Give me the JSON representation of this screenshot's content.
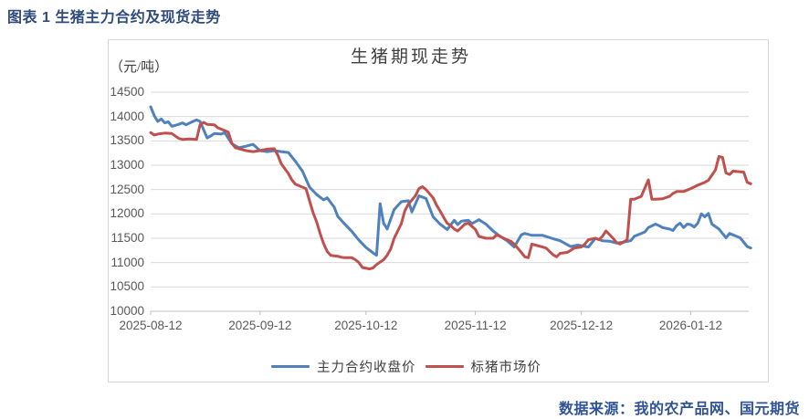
{
  "header": {
    "title": "图表 1 生猪主力合约及现货走势"
  },
  "footer": {
    "source": "数据来源：我的农产品网、国元期货"
  },
  "palette": {
    "header_text": "#2E4B7C",
    "source_text": "#2F5496",
    "grid": "#D9D9D9",
    "axis_line": "#BFBFBF",
    "axis_text": "#595959",
    "title_text": "#404040",
    "series_blue": "#4F81BD",
    "series_red": "#C0504D"
  },
  "chart_data": {
    "type": "line",
    "title": "生猪期现走势",
    "unit_label": "（元/吨）",
    "xlabel": "",
    "ylabel": "元/吨",
    "ylim": [
      10000,
      14500
    ],
    "y_ticks": [
      10000,
      10500,
      11000,
      11500,
      12000,
      12500,
      13000,
      13500,
      14000,
      14500
    ],
    "x_ticks": [
      "2025-08-12",
      "2025-09-12",
      "2025-10-12",
      "2025-11-12",
      "2025-12-12",
      "2026-01-12"
    ],
    "x_range": [
      "2025-08-12",
      "2026-01-29"
    ],
    "grid": true,
    "legend_position": "bottom",
    "series": [
      {
        "name": "主力合约收盘价",
        "color": "#4F81BD",
        "points": [
          [
            "2025-08-12",
            14200
          ],
          [
            "2025-08-13",
            14020
          ],
          [
            "2025-08-14",
            13900
          ],
          [
            "2025-08-15",
            13950
          ],
          [
            "2025-08-16",
            13870
          ],
          [
            "2025-08-17",
            13890
          ],
          [
            "2025-08-18",
            13800
          ],
          [
            "2025-08-20",
            13840
          ],
          [
            "2025-08-21",
            13870
          ],
          [
            "2025-08-22",
            13830
          ],
          [
            "2025-08-24",
            13900
          ],
          [
            "2025-08-25",
            13930
          ],
          [
            "2025-08-26",
            13900
          ],
          [
            "2025-08-28",
            13560
          ],
          [
            "2025-08-29",
            13600
          ],
          [
            "2025-08-30",
            13650
          ],
          [
            "2025-09-01",
            13640
          ],
          [
            "2025-09-02",
            13670
          ],
          [
            "2025-09-04",
            13440
          ],
          [
            "2025-09-06",
            13360
          ],
          [
            "2025-09-08",
            13390
          ],
          [
            "2025-09-10",
            13430
          ],
          [
            "2025-09-12",
            13300
          ],
          [
            "2025-09-14",
            13280
          ],
          [
            "2025-09-16",
            13300
          ],
          [
            "2025-09-18",
            13280
          ],
          [
            "2025-09-20",
            13260
          ],
          [
            "2025-09-22",
            13080
          ],
          [
            "2025-09-24",
            12880
          ],
          [
            "2025-09-26",
            12550
          ],
          [
            "2025-09-28",
            12400
          ],
          [
            "2025-09-30",
            12290
          ],
          [
            "2025-10-01",
            12330
          ],
          [
            "2025-10-03",
            12140
          ],
          [
            "2025-10-04",
            11950
          ],
          [
            "2025-10-06",
            11790
          ],
          [
            "2025-10-08",
            11640
          ],
          [
            "2025-10-10",
            11460
          ],
          [
            "2025-10-12",
            11310
          ],
          [
            "2025-10-14",
            11200
          ],
          [
            "2025-10-15",
            11150
          ],
          [
            "2025-10-16",
            12210
          ],
          [
            "2025-10-17",
            11810
          ],
          [
            "2025-10-18",
            11690
          ],
          [
            "2025-10-20",
            12090
          ],
          [
            "2025-10-22",
            12250
          ],
          [
            "2025-10-24",
            12270
          ],
          [
            "2025-10-25",
            12040
          ],
          [
            "2025-10-27",
            12370
          ],
          [
            "2025-10-29",
            12320
          ],
          [
            "2025-10-31",
            11940
          ],
          [
            "2025-11-02",
            11790
          ],
          [
            "2025-11-04",
            11680
          ],
          [
            "2025-11-06",
            11870
          ],
          [
            "2025-11-07",
            11780
          ],
          [
            "2025-11-08",
            11850
          ],
          [
            "2025-11-10",
            11870
          ],
          [
            "2025-11-11",
            11800
          ],
          [
            "2025-11-13",
            11880
          ],
          [
            "2025-11-15",
            11790
          ],
          [
            "2025-11-17",
            11650
          ],
          [
            "2025-11-19",
            11540
          ],
          [
            "2025-11-21",
            11450
          ],
          [
            "2025-11-23",
            11320
          ],
          [
            "2025-11-25",
            11570
          ],
          [
            "2025-11-26",
            11600
          ],
          [
            "2025-11-28",
            11560
          ],
          [
            "2025-12-01",
            11560
          ],
          [
            "2025-12-04",
            11490
          ],
          [
            "2025-12-06",
            11450
          ],
          [
            "2025-12-09",
            11330
          ],
          [
            "2025-12-11",
            11360
          ],
          [
            "2025-12-14",
            11320
          ],
          [
            "2025-12-16",
            11500
          ],
          [
            "2025-12-18",
            11450
          ],
          [
            "2025-12-20",
            11440
          ],
          [
            "2025-12-22",
            11400
          ],
          [
            "2025-12-24",
            11420
          ],
          [
            "2025-12-26",
            11450
          ],
          [
            "2025-12-27",
            11540
          ],
          [
            "2025-12-29",
            11600
          ],
          [
            "2025-12-30",
            11630
          ],
          [
            "2025-12-31",
            11720
          ],
          [
            "2026-01-02",
            11790
          ],
          [
            "2026-01-03",
            11760
          ],
          [
            "2026-01-04",
            11720
          ],
          [
            "2026-01-06",
            11690
          ],
          [
            "2026-01-07",
            11660
          ],
          [
            "2026-01-08",
            11760
          ],
          [
            "2026-01-09",
            11810
          ],
          [
            "2026-01-10",
            11720
          ],
          [
            "2026-01-11",
            11790
          ],
          [
            "2026-01-12",
            11780
          ],
          [
            "2026-01-13",
            11730
          ],
          [
            "2026-01-14",
            11810
          ],
          [
            "2026-01-15",
            12000
          ],
          [
            "2026-01-16",
            11940
          ],
          [
            "2026-01-17",
            12010
          ],
          [
            "2026-01-18",
            11790
          ],
          [
            "2026-01-20",
            11690
          ],
          [
            "2026-01-21",
            11600
          ],
          [
            "2026-01-22",
            11510
          ],
          [
            "2026-01-23",
            11600
          ],
          [
            "2026-01-24",
            11570
          ],
          [
            "2026-01-25",
            11540
          ],
          [
            "2026-01-26",
            11510
          ],
          [
            "2026-01-28",
            11330
          ],
          [
            "2026-01-29",
            11300
          ]
        ]
      },
      {
        "name": "标猪市场价",
        "color": "#C0504D",
        "points": [
          [
            "2025-08-12",
            13670
          ],
          [
            "2025-08-13",
            13620
          ],
          [
            "2025-08-14",
            13640
          ],
          [
            "2025-08-16",
            13660
          ],
          [
            "2025-08-18",
            13650
          ],
          [
            "2025-08-20",
            13550
          ],
          [
            "2025-08-21",
            13530
          ],
          [
            "2025-08-23",
            13540
          ],
          [
            "2025-08-25",
            13530
          ],
          [
            "2025-08-26",
            13830
          ],
          [
            "2025-08-27",
            13880
          ],
          [
            "2025-08-28",
            13840
          ],
          [
            "2025-08-30",
            13830
          ],
          [
            "2025-08-31",
            13770
          ],
          [
            "2025-09-02",
            13710
          ],
          [
            "2025-09-03",
            13680
          ],
          [
            "2025-09-04",
            13450
          ],
          [
            "2025-09-05",
            13360
          ],
          [
            "2025-09-06",
            13340
          ],
          [
            "2025-09-08",
            13300
          ],
          [
            "2025-09-10",
            13280
          ],
          [
            "2025-09-12",
            13300
          ],
          [
            "2025-09-14",
            13330
          ],
          [
            "2025-09-16",
            13340
          ],
          [
            "2025-09-17",
            13210
          ],
          [
            "2025-09-18",
            13030
          ],
          [
            "2025-09-20",
            12830
          ],
          [
            "2025-09-21",
            12700
          ],
          [
            "2025-09-22",
            12610
          ],
          [
            "2025-09-24",
            12550
          ],
          [
            "2025-09-25",
            12520
          ],
          [
            "2025-09-26",
            12270
          ],
          [
            "2025-09-27",
            12030
          ],
          [
            "2025-09-28",
            11840
          ],
          [
            "2025-09-29",
            11600
          ],
          [
            "2025-09-30",
            11390
          ],
          [
            "2025-10-01",
            11230
          ],
          [
            "2025-10-02",
            11150
          ],
          [
            "2025-10-04",
            11130
          ],
          [
            "2025-10-05",
            11110
          ],
          [
            "2025-10-06",
            11100
          ],
          [
            "2025-10-08",
            11100
          ],
          [
            "2025-10-09",
            11060
          ],
          [
            "2025-10-10",
            11000
          ],
          [
            "2025-10-11",
            10900
          ],
          [
            "2025-10-13",
            10870
          ],
          [
            "2025-10-14",
            10890
          ],
          [
            "2025-10-15",
            10960
          ],
          [
            "2025-10-17",
            11060
          ],
          [
            "2025-10-18",
            11150
          ],
          [
            "2025-10-19",
            11280
          ],
          [
            "2025-10-20",
            11500
          ],
          [
            "2025-10-22",
            11800
          ],
          [
            "2025-10-23",
            12060
          ],
          [
            "2025-10-24",
            12200
          ],
          [
            "2025-10-26",
            12370
          ],
          [
            "2025-10-27",
            12520
          ],
          [
            "2025-10-28",
            12560
          ],
          [
            "2025-10-29",
            12500
          ],
          [
            "2025-10-31",
            12330
          ],
          [
            "2025-11-01",
            12180
          ],
          [
            "2025-11-02",
            12060
          ],
          [
            "2025-11-03",
            11930
          ],
          [
            "2025-11-04",
            11810
          ],
          [
            "2025-11-05",
            11760
          ],
          [
            "2025-11-06",
            11690
          ],
          [
            "2025-11-07",
            11650
          ],
          [
            "2025-11-08",
            11720
          ],
          [
            "2025-11-09",
            11790
          ],
          [
            "2025-11-10",
            11810
          ],
          [
            "2025-11-12",
            11680
          ],
          [
            "2025-11-13",
            11540
          ],
          [
            "2025-11-15",
            11500
          ],
          [
            "2025-11-17",
            11500
          ],
          [
            "2025-11-18",
            11570
          ],
          [
            "2025-11-19",
            11540
          ],
          [
            "2025-11-20",
            11500
          ],
          [
            "2025-11-22",
            11440
          ],
          [
            "2025-11-23",
            11380
          ],
          [
            "2025-11-25",
            11210
          ],
          [
            "2025-11-26",
            11120
          ],
          [
            "2025-11-27",
            11100
          ],
          [
            "2025-11-28",
            11380
          ],
          [
            "2025-11-29",
            11360
          ],
          [
            "2025-12-01",
            11320
          ],
          [
            "2025-12-02",
            11300
          ],
          [
            "2025-12-04",
            11160
          ],
          [
            "2025-12-05",
            11120
          ],
          [
            "2025-12-06",
            11190
          ],
          [
            "2025-12-08",
            11210
          ],
          [
            "2025-12-09",
            11250
          ],
          [
            "2025-12-10",
            11300
          ],
          [
            "2025-12-12",
            11320
          ],
          [
            "2025-12-13",
            11380
          ],
          [
            "2025-12-14",
            11470
          ],
          [
            "2025-12-16",
            11500
          ],
          [
            "2025-12-17",
            11470
          ],
          [
            "2025-12-18",
            11540
          ],
          [
            "2025-12-19",
            11650
          ],
          [
            "2025-12-21",
            11500
          ],
          [
            "2025-12-22",
            11410
          ],
          [
            "2025-12-23",
            11380
          ],
          [
            "2025-12-25",
            11470
          ],
          [
            "2025-12-26",
            12300
          ],
          [
            "2025-12-27",
            12300
          ],
          [
            "2025-12-29",
            12360
          ],
          [
            "2025-12-31",
            12700
          ],
          [
            "2026-01-01",
            12300
          ],
          [
            "2026-01-02",
            12300
          ],
          [
            "2026-01-04",
            12310
          ],
          [
            "2026-01-06",
            12360
          ],
          [
            "2026-01-07",
            12420
          ],
          [
            "2026-01-08",
            12460
          ],
          [
            "2026-01-10",
            12460
          ],
          [
            "2026-01-11",
            12490
          ],
          [
            "2026-01-12",
            12520
          ],
          [
            "2026-01-14",
            12590
          ],
          [
            "2026-01-15",
            12620
          ],
          [
            "2026-01-16",
            12650
          ],
          [
            "2026-01-17",
            12690
          ],
          [
            "2026-01-19",
            12900
          ],
          [
            "2026-01-20",
            13180
          ],
          [
            "2026-01-21",
            13160
          ],
          [
            "2026-01-22",
            12840
          ],
          [
            "2026-01-23",
            12810
          ],
          [
            "2026-01-24",
            12880
          ],
          [
            "2026-01-25",
            12870
          ],
          [
            "2026-01-27",
            12860
          ],
          [
            "2026-01-28",
            12650
          ],
          [
            "2026-01-29",
            12620
          ]
        ]
      }
    ]
  }
}
